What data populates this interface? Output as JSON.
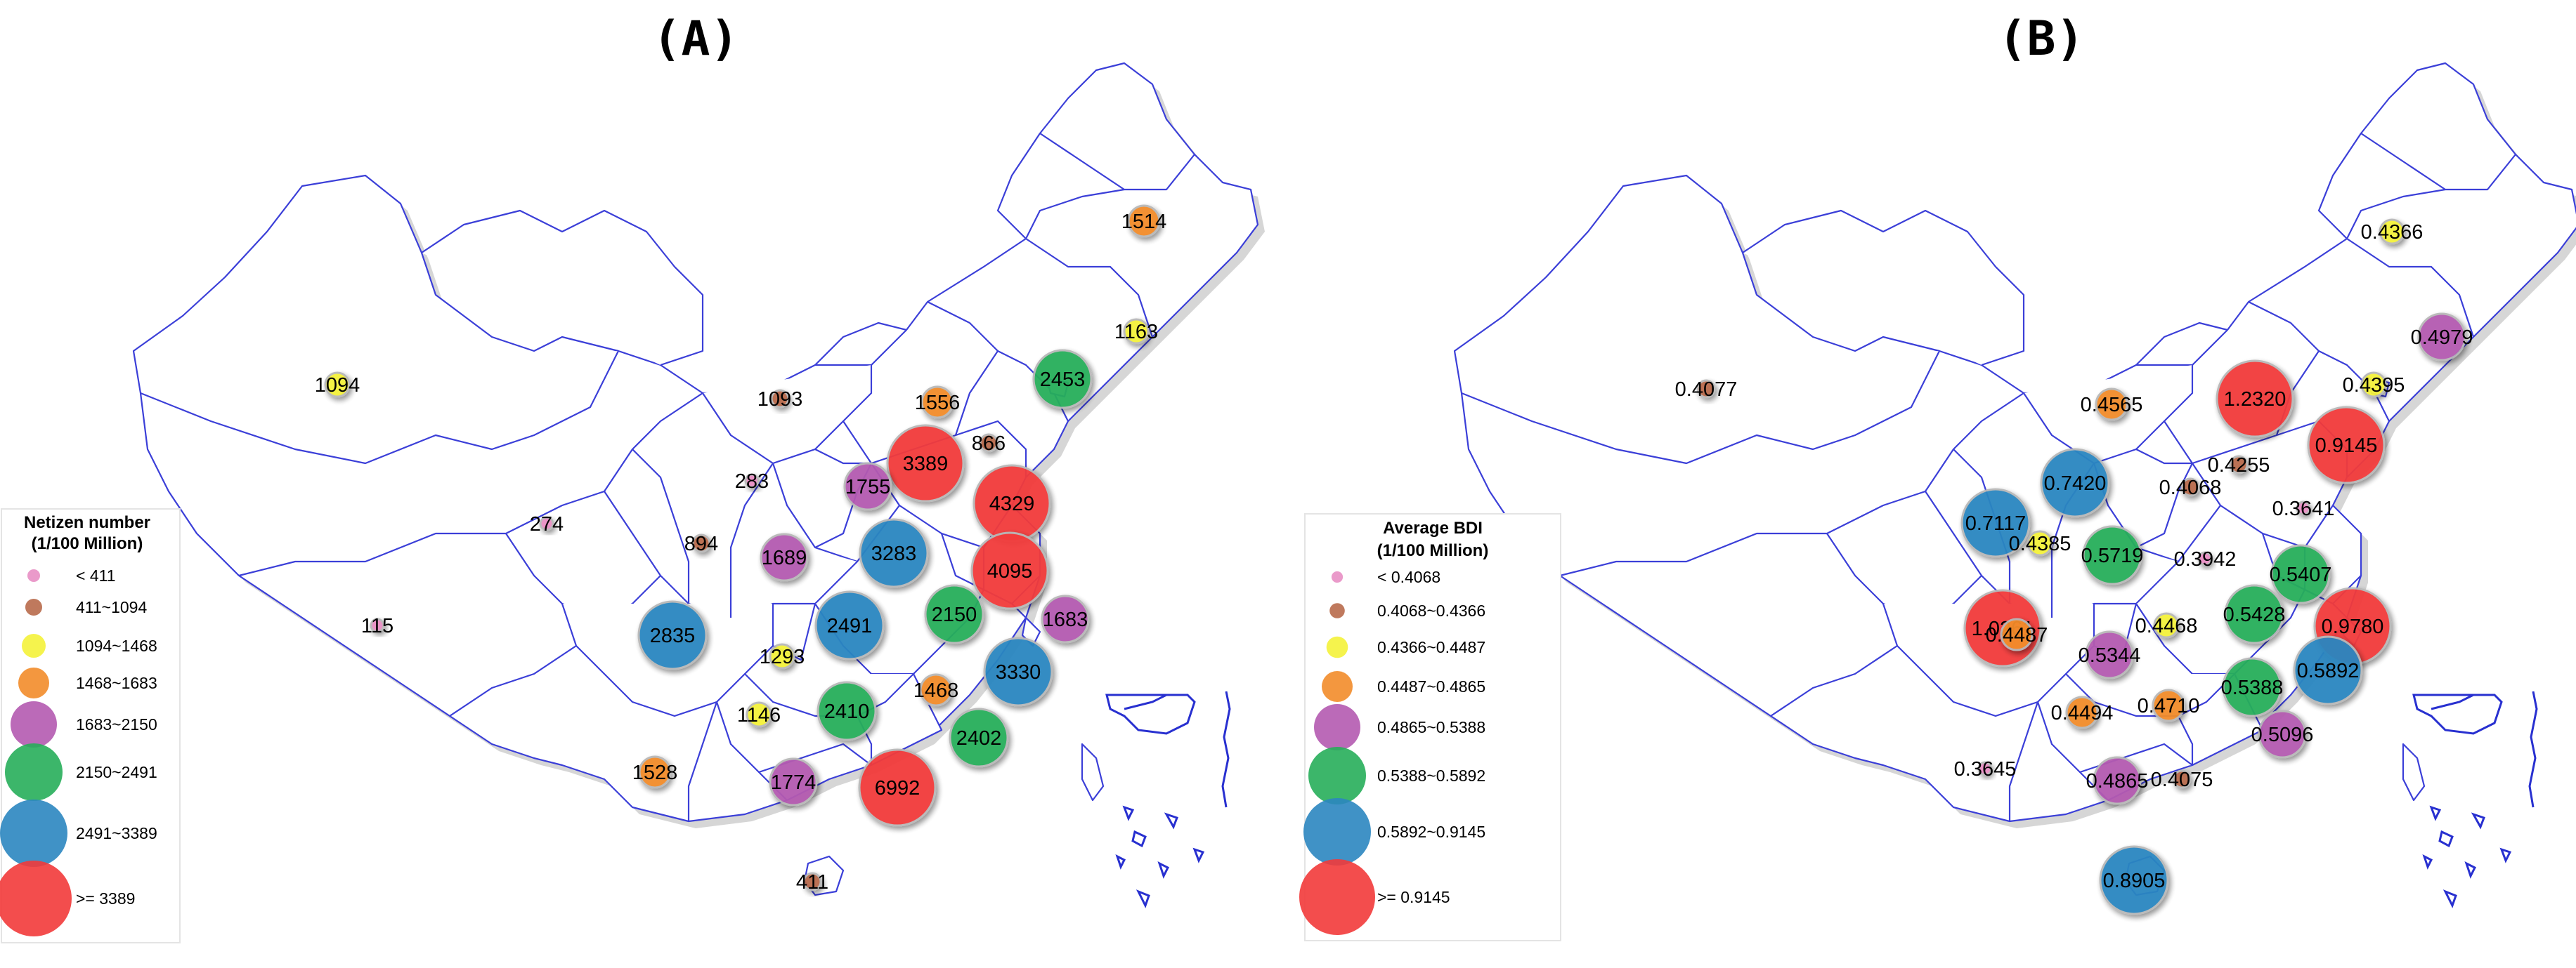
{
  "panels": [
    {
      "id": "A",
      "title": "(A)",
      "legend": {
        "title_line1": "Netizen number",
        "title_line2": "(1/100 Million)",
        "classes": [
          {
            "label": "< 411",
            "color": "#e88fc4",
            "size": 1
          },
          {
            "label": "411~1094",
            "color": "#b86a4b",
            "size": 2
          },
          {
            "label": "1094~1468",
            "color": "#f4f23a",
            "size": 3
          },
          {
            "label": "1468~1683",
            "color": "#f28c2a",
            "size": 4
          },
          {
            "label": "1683~2150",
            "color": "#b45ab0",
            "size": 5
          },
          {
            "label": "2150~2491",
            "color": "#27ae5a",
            "size": 6
          },
          {
            "label": "2491~3389",
            "color": "#2b86c0",
            "size": 7
          },
          {
            "label": ">= 3389",
            "color": "#f23a3a",
            "size": 8
          }
        ]
      },
      "points": [
        {
          "label": "1514",
          "class": 3
        },
        {
          "label": "1163",
          "class": 2
        },
        {
          "label": "2453",
          "class": 5
        },
        {
          "label": "1094",
          "class": 2
        },
        {
          "label": "1093",
          "class": 1
        },
        {
          "label": "1556",
          "class": 3
        },
        {
          "label": "866",
          "class": 1
        },
        {
          "label": "3389",
          "class": 7
        },
        {
          "label": "283",
          "class": 0
        },
        {
          "label": "1755",
          "class": 4
        },
        {
          "label": "4329",
          "class": 7
        },
        {
          "label": "274",
          "class": 0
        },
        {
          "label": "894",
          "class": 1
        },
        {
          "label": "1689",
          "class": 4
        },
        {
          "label": "3283",
          "class": 6
        },
        {
          "label": "4095",
          "class": 7
        },
        {
          "label": "115",
          "class": 0
        },
        {
          "label": "2835",
          "class": 6
        },
        {
          "label": "2491",
          "class": 6
        },
        {
          "label": "2150",
          "class": 5
        },
        {
          "label": "1683",
          "class": 4
        },
        {
          "label": "1293",
          "class": 2
        },
        {
          "label": "3330",
          "class": 6
        },
        {
          "label": "1146",
          "class": 2
        },
        {
          "label": "2410",
          "class": 5
        },
        {
          "label": "1468",
          "class": 3
        },
        {
          "label": "2402",
          "class": 5
        },
        {
          "label": "1528",
          "class": 3
        },
        {
          "label": "1774",
          "class": 4
        },
        {
          "label": "6992",
          "class": 7
        },
        {
          "label": "411",
          "class": 1
        }
      ]
    },
    {
      "id": "B",
      "title": "(B)",
      "legend": {
        "title_line1": "Average BDI",
        "title_line2": "(1/100 Million)",
        "classes": [
          {
            "label": "< 0.4068",
            "color": "#e88fc4",
            "size": 1
          },
          {
            "label": "0.4068~0.4366",
            "color": "#b86a4b",
            "size": 2
          },
          {
            "label": "0.4366~0.4487",
            "color": "#f4f23a",
            "size": 3
          },
          {
            "label": "0.4487~0.4865",
            "color": "#f28c2a",
            "size": 4
          },
          {
            "label": "0.4865~0.5388",
            "color": "#b45ab0",
            "size": 5
          },
          {
            "label": "0.5388~0.5892",
            "color": "#27ae5a",
            "size": 6
          },
          {
            "label": "0.5892~0.9145",
            "color": "#2b86c0",
            "size": 7
          },
          {
            "label": ">= 0.9145",
            "color": "#f23a3a",
            "size": 8
          }
        ]
      },
      "points": [
        {
          "label": "0.4366",
          "class": 2
        },
        {
          "label": "0.4979",
          "class": 4
        },
        {
          "label": "0.4077",
          "class": 1
        },
        {
          "label": "0.4565",
          "class": 3
        },
        {
          "label": "1.2320",
          "class": 7
        },
        {
          "label": "0.4395",
          "class": 2
        },
        {
          "label": "0.9145",
          "class": 7
        },
        {
          "label": "0.7420",
          "class": 6
        },
        {
          "label": "0.4068",
          "class": 1
        },
        {
          "label": "0.4255",
          "class": 1
        },
        {
          "label": "0.3641",
          "class": 0
        },
        {
          "label": "0.7117",
          "class": 6
        },
        {
          "label": "0.4385",
          "class": 2
        },
        {
          "label": "0.5719",
          "class": 5
        },
        {
          "label": "0.3942",
          "class": 0
        },
        {
          "label": "0.5407",
          "class": 5
        },
        {
          "label": "1.0261",
          "class": 7
        },
        {
          "label": "0.4487",
          "class": 3
        },
        {
          "label": "0.4468",
          "class": 2
        },
        {
          "label": "0.5428",
          "class": 5
        },
        {
          "label": "0.9780",
          "class": 7
        },
        {
          "label": "0.5344",
          "class": 4
        },
        {
          "label": "0.5892",
          "class": 6
        },
        {
          "label": "0.4494",
          "class": 3
        },
        {
          "label": "0.4710",
          "class": 3
        },
        {
          "label": "0.5388",
          "class": 5
        },
        {
          "label": "0.5096",
          "class": 4
        },
        {
          "label": "0.3645",
          "class": 0
        },
        {
          "label": "0.4865",
          "class": 4
        },
        {
          "label": "0.4075",
          "class": 1
        },
        {
          "label": "0.8905",
          "class": 6
        }
      ]
    }
  ]
}
